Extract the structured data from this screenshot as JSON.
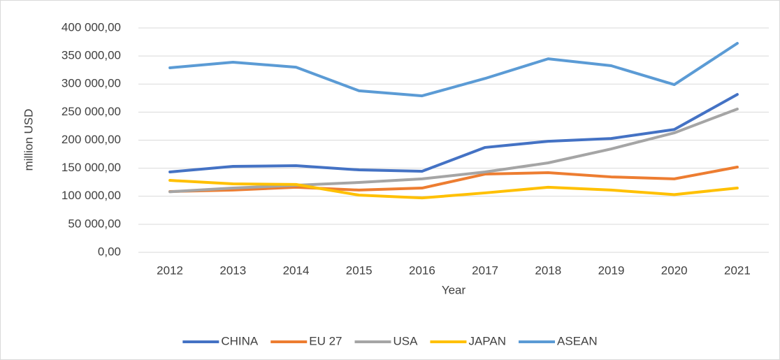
{
  "chart_data": {
    "type": "line",
    "y_label": "million USD",
    "x_label": "Year",
    "categories": [
      "2012",
      "2013",
      "2014",
      "2015",
      "2016",
      "2017",
      "2018",
      "2019",
      "2020",
      "2021"
    ],
    "series": [
      {
        "name": "CHINA",
        "color": "#4472c4",
        "values": [
          143300,
          153300,
          154500,
          147000,
          144500,
          187000,
          198000,
          203000,
          219000,
          281500
        ]
      },
      {
        "name": "EU 27",
        "color": "#ed7d31",
        "values": [
          108400,
          111000,
          116000,
          111000,
          114600,
          139500,
          142000,
          134500,
          131000,
          152000
        ]
      },
      {
        "name": "USA",
        "color": "#a5a5a5",
        "values": [
          108000,
          114600,
          119600,
          124600,
          131000,
          143300,
          159500,
          184400,
          213000,
          255500
        ]
      },
      {
        "name": "JAPAN",
        "color": "#ffc000",
        "values": [
          128300,
          122100,
          121000,
          102000,
          97000,
          106000,
          116000,
          111000,
          103000,
          114600
        ]
      },
      {
        "name": "ASEAN",
        "color": "#5b9bd5",
        "values": [
          329000,
          339000,
          330000,
          288000,
          279000,
          310000,
          345000,
          332700,
          299000,
          372600
        ]
      }
    ],
    "ylim": [
      0,
      400000
    ],
    "yticks": [
      {
        "value": 0,
        "label": "0,00"
      },
      {
        "value": 50000,
        "label": "50 000,00"
      },
      {
        "value": 100000,
        "label": "100 000,00"
      },
      {
        "value": 150000,
        "label": "150 000,00"
      },
      {
        "value": 200000,
        "label": "200 000,00"
      },
      {
        "value": 250000,
        "label": "250 000,00"
      },
      {
        "value": 300000,
        "label": "300 000,00"
      },
      {
        "value": 350000,
        "label": "350 000,00"
      },
      {
        "value": 400000,
        "label": "400 000,00"
      }
    ],
    "grid": true,
    "legend": "bottom"
  }
}
